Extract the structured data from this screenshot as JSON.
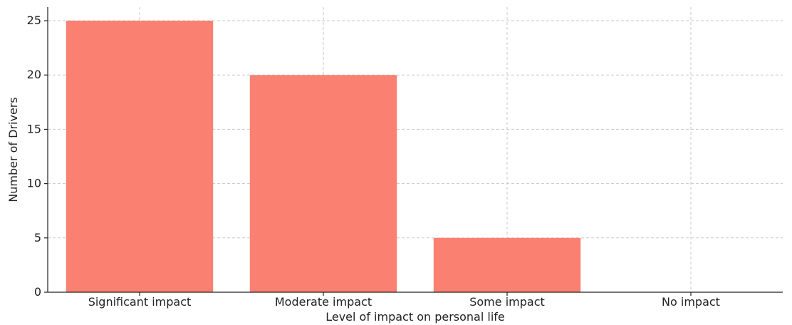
{
  "chart_data": {
    "type": "bar",
    "title": "",
    "xlabel": "Level of impact on personal life",
    "ylabel": "Number of Drivers",
    "categories": [
      "Significant impact",
      "Moderate impact",
      "Some impact",
      "No impact"
    ],
    "values": [
      25,
      20,
      5,
      0
    ],
    "ylim": [
      0,
      26.25
    ],
    "yticks": [
      0,
      5,
      10,
      15,
      20,
      25
    ],
    "grid": true,
    "legend": "none",
    "colors": {
      "bar": "#fa8072",
      "grid": "#c8c8c8",
      "axis": "#222222"
    }
  }
}
